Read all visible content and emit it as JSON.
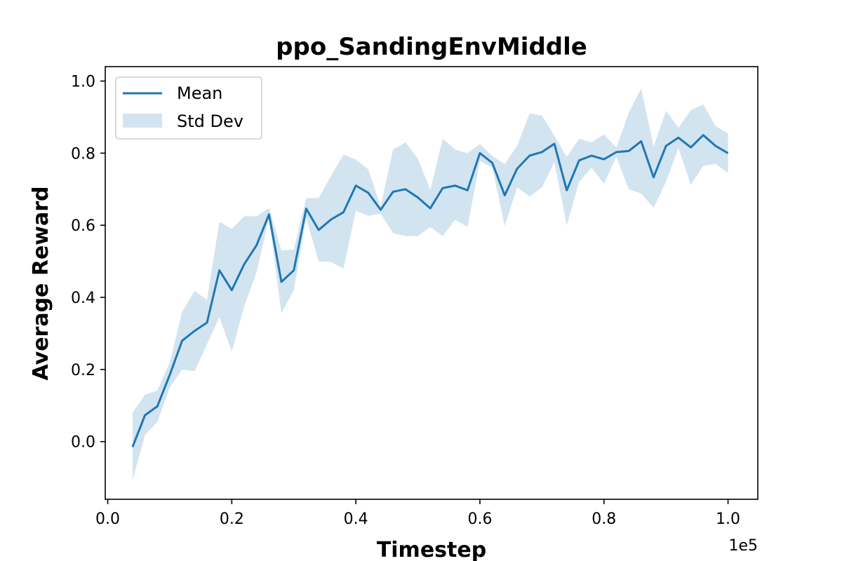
{
  "chart_data": {
    "type": "line",
    "title": "ppo_SandingEnvMiddle",
    "xlabel": "Timestep",
    "ylabel": "Average Reward",
    "x_offset_label": "1e5",
    "xlim": [
      -0.004,
      1.048
    ],
    "ylim": [
      -0.16,
      1.04
    ],
    "x_ticks": [
      0.0,
      0.2,
      0.4,
      0.6,
      0.8,
      1.0
    ],
    "x_tick_labels": [
      "0.0",
      "0.2",
      "0.4",
      "0.6",
      "0.8",
      "1.0"
    ],
    "y_ticks": [
      0.0,
      0.2,
      0.4,
      0.6,
      0.8,
      1.0
    ],
    "y_tick_labels": [
      "0.0",
      "0.2",
      "0.4",
      "0.6",
      "0.8",
      "1.0"
    ],
    "grid": false,
    "legend_position": "top-left",
    "colors": {
      "mean": "#1f77b4",
      "band": "#1f77b4"
    },
    "x": [
      0.04,
      0.06,
      0.08,
      0.1,
      0.12,
      0.14,
      0.16,
      0.18,
      0.2,
      0.22,
      0.24,
      0.26,
      0.28,
      0.3,
      0.32,
      0.34,
      0.36,
      0.38,
      0.4,
      0.42,
      0.44,
      0.46,
      0.48,
      0.5,
      0.52,
      0.54,
      0.56,
      0.58,
      0.6,
      0.62,
      0.64,
      0.66,
      0.68,
      0.7,
      0.72,
      0.74,
      0.76,
      0.78,
      0.8,
      0.82,
      0.84,
      0.86,
      0.88,
      0.9,
      0.92,
      0.94,
      0.96,
      0.98,
      1.0
    ],
    "series": [
      {
        "name": "Mean",
        "values": [
          -0.015,
          0.073,
          0.098,
          0.185,
          0.28,
          0.307,
          0.33,
          0.475,
          0.42,
          0.492,
          0.545,
          0.63,
          0.443,
          0.475,
          0.646,
          0.587,
          0.616,
          0.636,
          0.71,
          0.69,
          0.643,
          0.693,
          0.7,
          0.677,
          0.647,
          0.703,
          0.71,
          0.697,
          0.8,
          0.773,
          0.683,
          0.757,
          0.793,
          0.803,
          0.826,
          0.697,
          0.78,
          0.793,
          0.783,
          0.803,
          0.806,
          0.833,
          0.733,
          0.82,
          0.843,
          0.816,
          0.85,
          0.82,
          0.8
        ]
      },
      {
        "name": "Std Dev",
        "lower": [
          -0.108,
          0.018,
          0.055,
          0.15,
          0.2,
          0.195,
          0.27,
          0.345,
          0.25,
          0.375,
          0.47,
          0.62,
          0.356,
          0.42,
          0.62,
          0.5,
          0.498,
          0.48,
          0.64,
          0.626,
          0.632,
          0.578,
          0.57,
          0.57,
          0.595,
          0.57,
          0.615,
          0.595,
          0.778,
          0.76,
          0.598,
          0.705,
          0.68,
          0.705,
          0.775,
          0.6,
          0.72,
          0.76,
          0.715,
          0.79,
          0.7,
          0.688,
          0.648,
          0.72,
          0.815,
          0.712,
          0.765,
          0.77,
          0.745
        ],
        "upper": [
          0.08,
          0.13,
          0.142,
          0.22,
          0.36,
          0.418,
          0.393,
          0.61,
          0.59,
          0.625,
          0.625,
          0.648,
          0.53,
          0.533,
          0.675,
          0.675,
          0.737,
          0.796,
          0.782,
          0.755,
          0.652,
          0.81,
          0.83,
          0.785,
          0.698,
          0.84,
          0.81,
          0.8,
          0.825,
          0.792,
          0.77,
          0.82,
          0.91,
          0.905,
          0.848,
          0.79,
          0.84,
          0.83,
          0.852,
          0.815,
          0.912,
          0.98,
          0.818,
          0.918,
          0.87,
          0.92,
          0.935,
          0.875,
          0.855
        ]
      }
    ]
  }
}
